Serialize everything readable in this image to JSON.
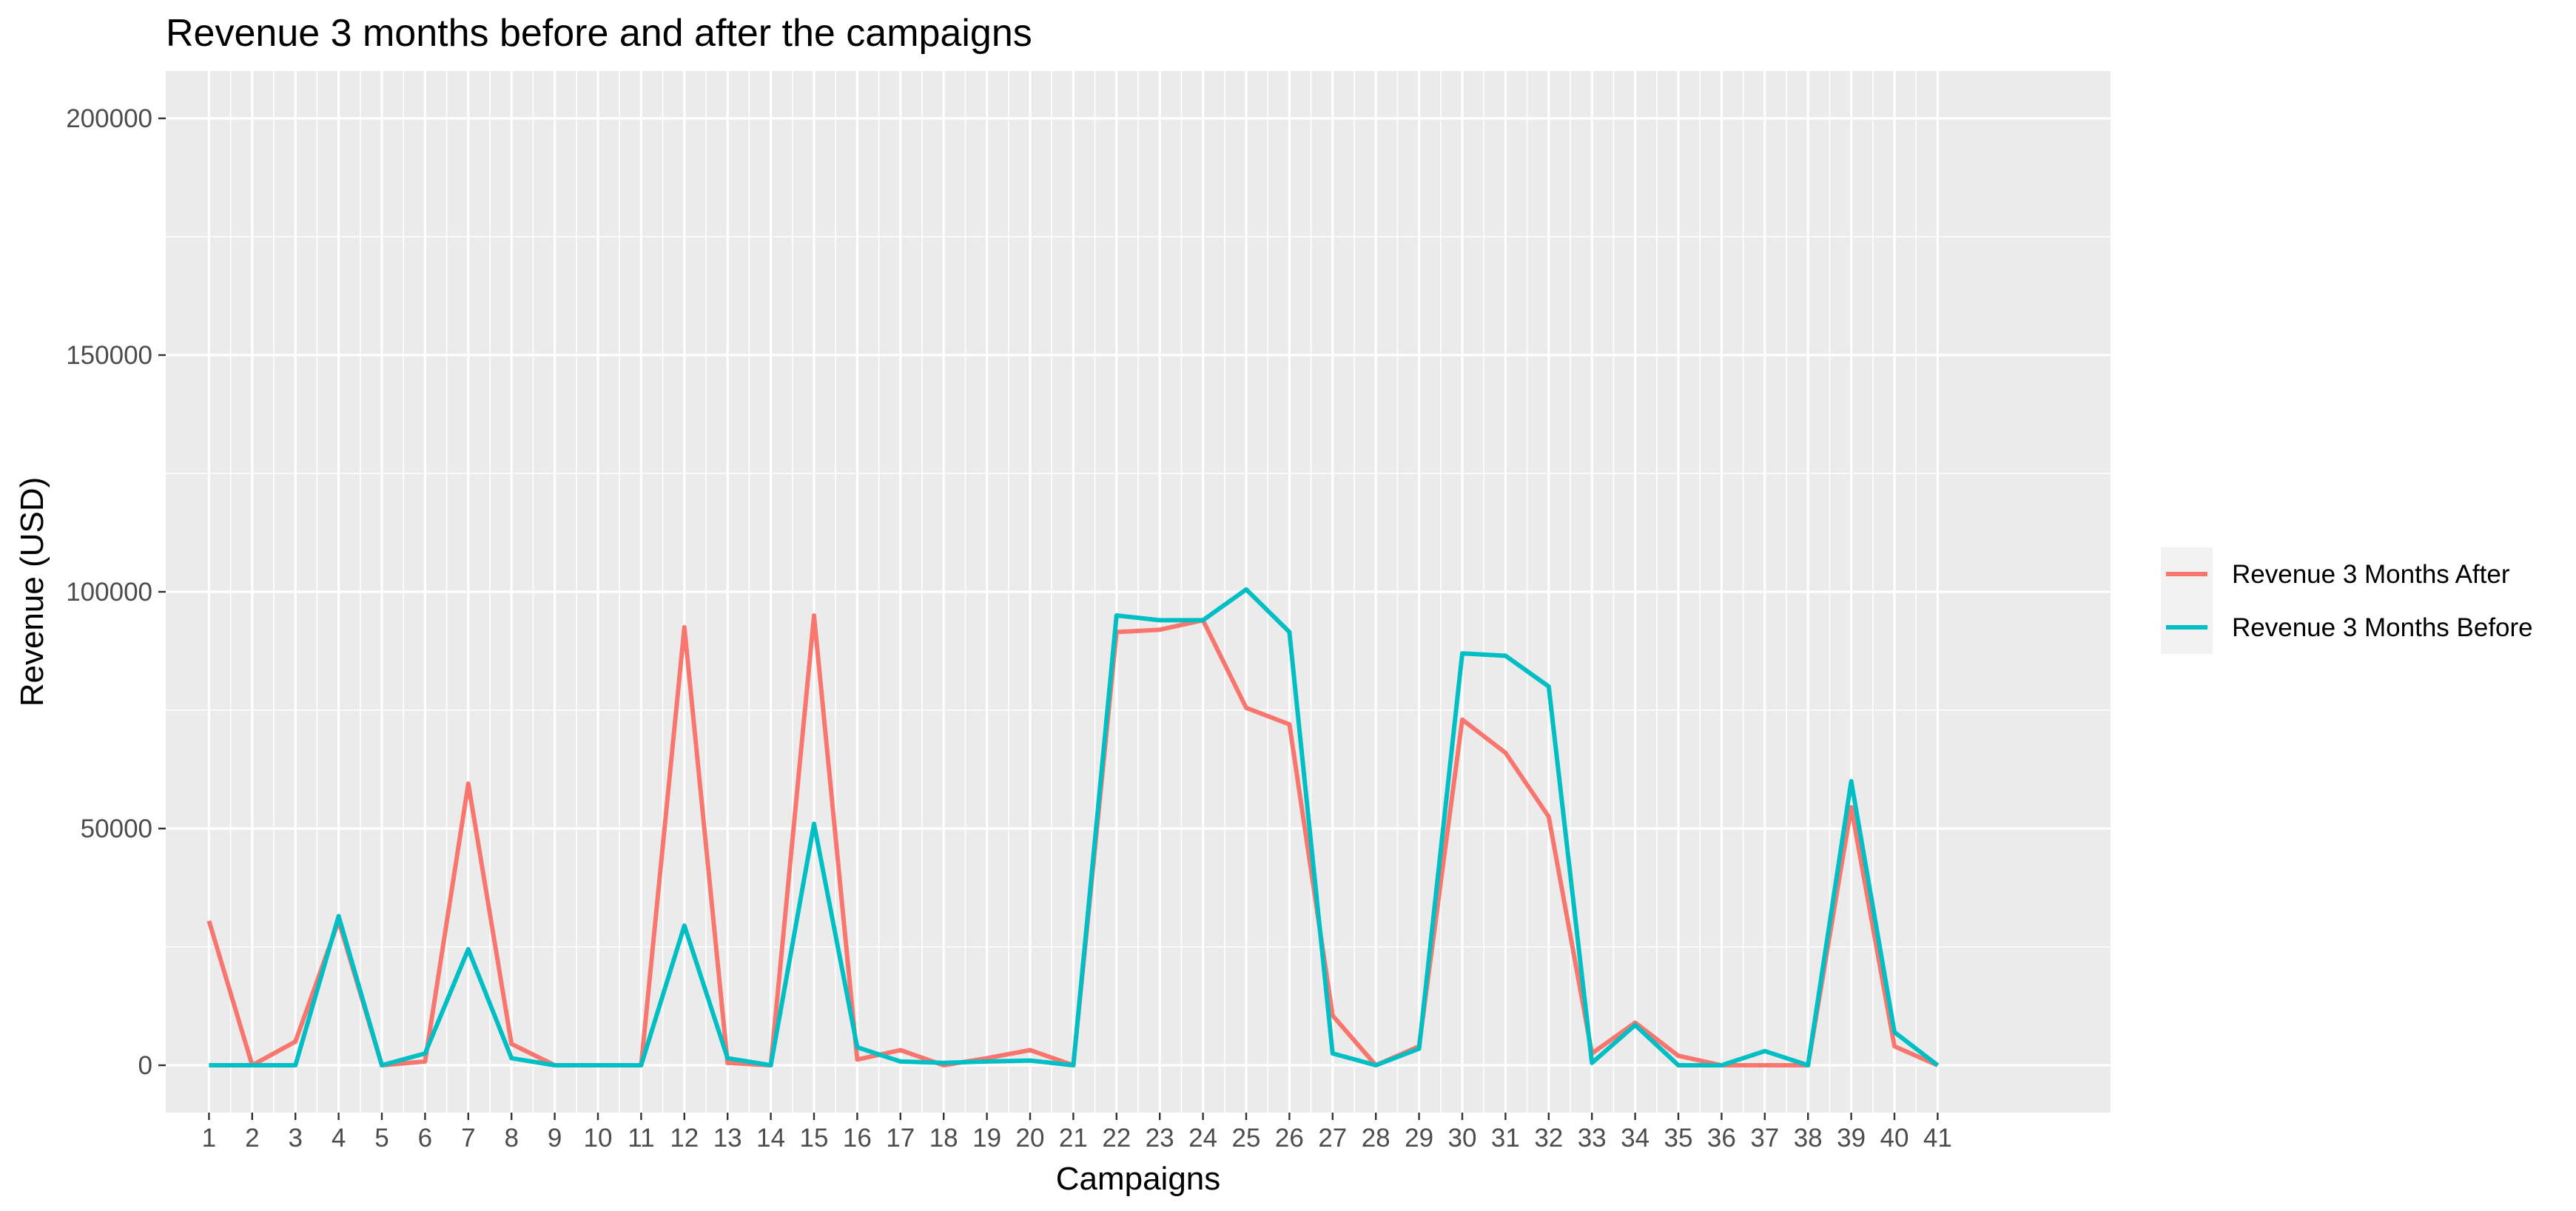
{
  "chart_data": {
    "type": "line",
    "title": "Revenue 3 months before and after the campaigns",
    "xlabel": "Campaigns",
    "ylabel": "Revenue (USD)",
    "x": [
      1,
      2,
      3,
      4,
      5,
      6,
      7,
      8,
      9,
      10,
      11,
      12,
      13,
      14,
      15,
      16,
      17,
      18,
      19,
      20,
      21,
      22,
      23,
      24,
      25,
      26,
      27,
      28,
      29,
      30,
      31,
      32,
      33,
      34,
      35,
      36,
      37,
      38,
      39,
      40,
      41
    ],
    "xlim": [
      0,
      45
    ],
    "ylim": [
      -10000,
      210000
    ],
    "yticks": [
      0,
      50000,
      100000,
      150000,
      200000
    ],
    "ytick_labels": [
      "0",
      "50000",
      "100000",
      "150000",
      "200000"
    ],
    "grid": true,
    "legend_position": "right",
    "series": [
      {
        "name": "Revenue 3 Months After",
        "color": "#F8766D",
        "values": [
          30500,
          0,
          5000,
          30500,
          0,
          800,
          59500,
          4500,
          0,
          0,
          0,
          92500,
          500,
          0,
          95000,
          1200,
          3200,
          0,
          1500,
          3200,
          0,
          91500,
          92000,
          94000,
          75500,
          72000,
          10500,
          0,
          4000,
          73000,
          66000,
          52500,
          2500,
          9000,
          2000,
          0,
          0,
          0,
          54500,
          4000,
          0
        ]
      },
      {
        "name": "Revenue 3 Months Before",
        "color": "#00BFC4",
        "values": [
          0,
          0,
          0,
          31500,
          0,
          2500,
          24500,
          1500,
          0,
          0,
          0,
          29500,
          1500,
          0,
          51000,
          3800,
          800,
          500,
          800,
          1000,
          0,
          95000,
          94000,
          94000,
          100500,
          91500,
          2500,
          0,
          3500,
          87000,
          86500,
          80000,
          500,
          8500,
          0,
          0,
          3000,
          0,
          60000,
          7000,
          0
        ]
      }
    ]
  }
}
